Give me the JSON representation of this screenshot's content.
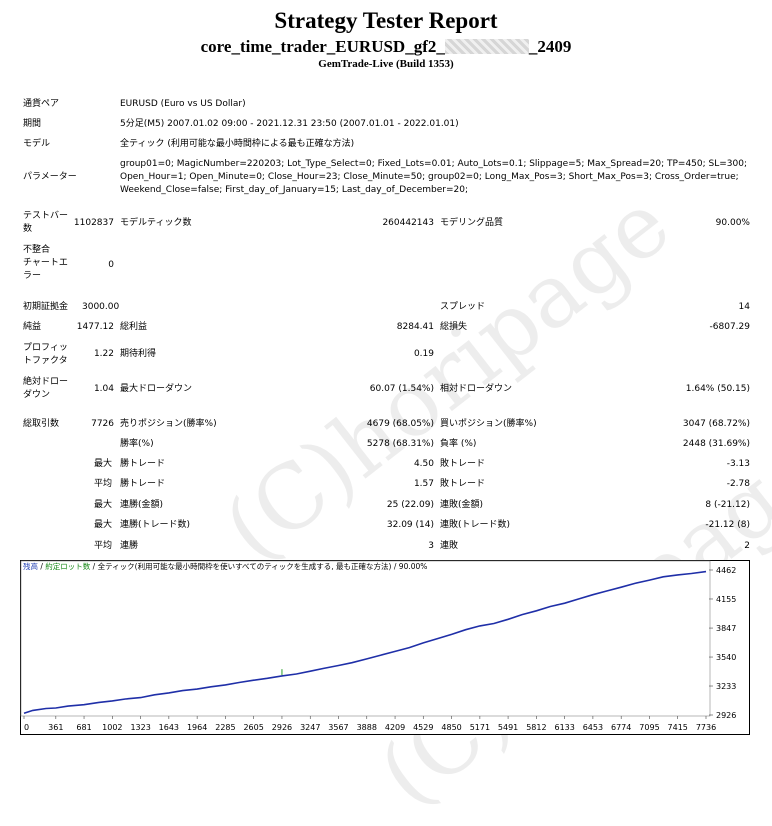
{
  "header": {
    "title": "Strategy Tester Report",
    "name_prefix": "core_time_trader_EURUSD_gf2_",
    "name_suffix": "_2409",
    "build": "GemTrade-Live (Build 1353)"
  },
  "info": {
    "pair_label": "通貨ペア",
    "pair_value": "EURUSD (Euro vs US Dollar)",
    "period_label": "期間",
    "period_value": "5分足(M5) 2007.01.02 09:00 - 2021.12.31 23:50 (2007.01.01 - 2022.01.01)",
    "model_label": "モデル",
    "model_value": "全ティック (利用可能な最小時間枠による最も正確な方法)",
    "params_label": "パラメーター",
    "params_value": "group01=0; MagicNumber=220203; Lot_Type_Select=0; Fixed_Lots=0.01; Auto_Lots=0.1; Slippage=5; Max_Spread=20; TP=450; SL=300; Open_Hour=1; Open_Minute=0; Close_Hour=23; Close_Minute=50; group02=0; Long_Max_Pos=3; Short_Max_Pos=3; Cross_Order=true; Weekend_Close=false; First_day_of_January=15; Last_day_of_December=20;"
  },
  "stats": {
    "bars_label": "テストバー\n数",
    "bars_value": "1102837",
    "ticks_label": "モデルティック数",
    "ticks_value": "260442143",
    "quality_label": "モデリング品質",
    "quality_value": "90.00%",
    "mismatch_label": "不整合\nチャートエ\nラー",
    "mismatch_value": "0",
    "deposit_label": "初期証拠金",
    "deposit_value": "3000.00",
    "spread_label": "スプレッド",
    "spread_value": "14",
    "net_label": "純益",
    "net_value": "1477.12",
    "gross_profit_label": "総利益",
    "gross_profit_value": "8284.41",
    "gross_loss_label": "総損失",
    "gross_loss_value": "-6807.29",
    "pf_label": "プロフィッ\nトファクタ",
    "pf_value": "1.22",
    "expected_label": "期待利得",
    "expected_value": "0.19",
    "abs_dd_label": "絶対ドロー\nダウン",
    "abs_dd_value": "1.04",
    "max_dd_label": "最大ドローダウン",
    "max_dd_value": "60.07 (1.54%)",
    "rel_dd_label": "相対ドローダウン",
    "rel_dd_value": "1.64% (50.15)",
    "trades_label": "総取引数",
    "trades_value": "7726",
    "short_label": "売りポジション(勝率%)",
    "short_value": "4679 (68.05%)",
    "long_label": "買いポジション(勝率%)",
    "long_value": "3047 (68.72%)",
    "winrate_label": "勝率(%)",
    "winrate_value": "5278 (68.31%)",
    "lossrate_label": "負率 (%)",
    "lossrate_value": "2448 (31.69%)",
    "max_word": "最大",
    "avg_word": "平均",
    "win_trade_label": "勝トレード",
    "max_win_value": "4.50",
    "loss_trade_label": "敗トレード",
    "max_loss_value": "-3.13",
    "avg_win_value": "1.57",
    "avg_loss_value": "-2.78",
    "cons_win_amt_label": "連勝(金額)",
    "cons_win_amt_value": "25 (22.09)",
    "cons_loss_amt_label": "連敗(金額)",
    "cons_loss_amt_value": "8 (-21.12)",
    "cons_win_cnt_label": "連勝(トレード数)",
    "cons_win_cnt_value": "32.09 (14)",
    "cons_loss_cnt_label": "連敗(トレード数)",
    "cons_loss_cnt_value": "-21.12 (8)",
    "avg_cons_win_label": "連勝",
    "avg_cons_win_value": "3",
    "avg_cons_loss_label": "連敗",
    "avg_cons_loss_value": "2"
  },
  "watermark": "(C)horipage",
  "chart_data": {
    "type": "line",
    "legend": {
      "balance": "残高",
      "sep1": " / ",
      "lots": "約定ロット数",
      "sep2": " / ",
      "model": "全ティック(利用可能な最小時間枠を使いすべてのティックを生成する, 最も正確な方法)",
      "quality": " / 90.00%"
    },
    "x_ticks": [
      "0",
      "361",
      "681",
      "1002",
      "1323",
      "1643",
      "1964",
      "2285",
      "2605",
      "2926",
      "3247",
      "3567",
      "3888",
      "4209",
      "4529",
      "4850",
      "5171",
      "5491",
      "5812",
      "6133",
      "6453",
      "6774",
      "7095",
      "7415",
      "7736"
    ],
    "y_ticks": [
      "4462",
      "4155",
      "3847",
      "3540",
      "3233",
      "2926"
    ],
    "xlim": [
      0,
      7736
    ],
    "ylim": [
      2926,
      4462
    ],
    "colors": {
      "balance": "#1f2fa8",
      "lots": "#2aa02a"
    },
    "series": [
      {
        "name": "残高",
        "x": [
          0,
          100,
          250,
          361,
          500,
          681,
          850,
          1002,
          1150,
          1323,
          1480,
          1643,
          1800,
          1964,
          2120,
          2285,
          2440,
          2605,
          2760,
          2926,
          3090,
          3247,
          3400,
          3567,
          3720,
          3888,
          4050,
          4209,
          4370,
          4529,
          4690,
          4850,
          5010,
          5171,
          5330,
          5491,
          5650,
          5812,
          5970,
          6133,
          6290,
          6453,
          6610,
          6774,
          6930,
          7095,
          7250,
          7415,
          7570,
          7736
        ],
        "values": [
          2945,
          2975,
          2995,
          3000,
          3020,
          3035,
          3060,
          3075,
          3095,
          3110,
          3140,
          3160,
          3185,
          3200,
          3225,
          3245,
          3270,
          3295,
          3315,
          3340,
          3360,
          3390,
          3420,
          3450,
          3480,
          3520,
          3560,
          3600,
          3640,
          3690,
          3735,
          3780,
          3830,
          3870,
          3895,
          3940,
          3990,
          4030,
          4075,
          4110,
          4155,
          4200,
          4240,
          4280,
          4320,
          4355,
          4390,
          4410,
          4425,
          4445
        ]
      }
    ]
  }
}
